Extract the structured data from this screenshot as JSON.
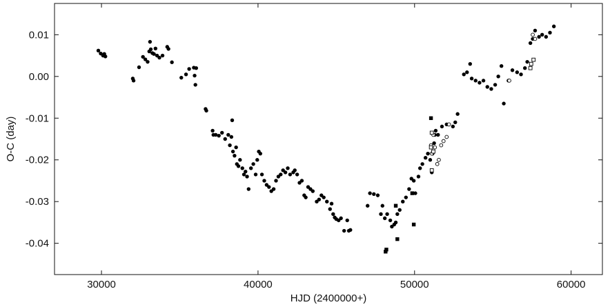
{
  "chart_data": {
    "type": "scatter",
    "xlabel": "HJD (2400000+)",
    "ylabel": "O-C (day)",
    "xlim": [
      27000,
      62000
    ],
    "ylim": [
      -0.0475,
      0.0175
    ],
    "xticks": [
      30000,
      40000,
      50000,
      60000
    ],
    "xtick_labels": [
      "30000",
      "40000",
      "50000",
      "60000"
    ],
    "yticks": [
      0.01,
      0.0,
      -0.01,
      -0.02,
      -0.03,
      -0.04
    ],
    "ytick_labels": [
      "0.01",
      "0.00",
      "-0.01",
      "-0.02",
      "-0.03",
      "-0.04"
    ],
    "grid": false,
    "legend": false,
    "series": [
      {
        "marker": "filled-circle",
        "points": [
          [
            29800,
            0.0062
          ],
          [
            29950,
            0.0055
          ],
          [
            30100,
            0.005
          ],
          [
            30250,
            0.0048
          ],
          [
            30180,
            0.0054
          ],
          [
            32000,
            -0.0005
          ],
          [
            32050,
            -0.001
          ],
          [
            32400,
            0.0022
          ],
          [
            32650,
            0.0047
          ],
          [
            32800,
            0.0041
          ],
          [
            32950,
            0.0035
          ],
          [
            33050,
            0.006
          ],
          [
            33100,
            0.0083
          ],
          [
            33150,
            0.0065
          ],
          [
            33250,
            0.0056
          ],
          [
            33350,
            0.0054
          ],
          [
            33450,
            0.0067
          ],
          [
            33550,
            0.005
          ],
          [
            33700,
            0.0045
          ],
          [
            33900,
            0.005
          ],
          [
            34200,
            0.0071
          ],
          [
            34280,
            0.0066
          ],
          [
            34500,
            0.0034
          ],
          [
            35100,
            -0.0003
          ],
          [
            35400,
            0.0005
          ],
          [
            35600,
            0.0018
          ],
          [
            35900,
            0.0021
          ],
          [
            35950,
            0.0002
          ],
          [
            36000,
            -0.002
          ],
          [
            36050,
            0.002
          ],
          [
            36650,
            -0.0078
          ],
          [
            36700,
            -0.0082
          ],
          [
            37100,
            -0.013
          ],
          [
            37150,
            -0.014
          ],
          [
            37300,
            -0.014
          ],
          [
            37500,
            -0.0142
          ],
          [
            37700,
            -0.0135
          ],
          [
            37900,
            -0.015
          ],
          [
            38100,
            -0.014
          ],
          [
            38200,
            -0.0165
          ],
          [
            38300,
            -0.0145
          ],
          [
            38350,
            -0.0105
          ],
          [
            38400,
            -0.018
          ],
          [
            38500,
            -0.019
          ],
          [
            38600,
            -0.017
          ],
          [
            38650,
            -0.021
          ],
          [
            38750,
            -0.0215
          ],
          [
            38850,
            -0.02
          ],
          [
            39000,
            -0.022
          ],
          [
            39100,
            -0.0235
          ],
          [
            39200,
            -0.0228
          ],
          [
            39300,
            -0.024
          ],
          [
            39400,
            -0.027
          ],
          [
            39550,
            -0.022
          ],
          [
            39700,
            -0.021
          ],
          [
            39850,
            -0.0235
          ],
          [
            39950,
            -0.02
          ],
          [
            40050,
            -0.018
          ],
          [
            40150,
            -0.0185
          ],
          [
            40250,
            -0.0235
          ],
          [
            40400,
            -0.025
          ],
          [
            40550,
            -0.026
          ],
          [
            40700,
            -0.0265
          ],
          [
            40850,
            -0.0275
          ],
          [
            41000,
            -0.027
          ],
          [
            41150,
            -0.025
          ],
          [
            41300,
            -0.024
          ],
          [
            41450,
            -0.0235
          ],
          [
            41600,
            -0.0225
          ],
          [
            41750,
            -0.023
          ],
          [
            41900,
            -0.022
          ],
          [
            42050,
            -0.0235
          ],
          [
            42250,
            -0.023
          ],
          [
            42350,
            -0.0225
          ],
          [
            42500,
            -0.0235
          ],
          [
            42650,
            -0.0255
          ],
          [
            42800,
            -0.025
          ],
          [
            42950,
            -0.0285
          ],
          [
            43050,
            -0.029
          ],
          [
            43200,
            -0.0265
          ],
          [
            43350,
            -0.027
          ],
          [
            43500,
            -0.0275
          ],
          [
            43750,
            -0.03
          ],
          [
            43900,
            -0.0295
          ],
          [
            44050,
            -0.0285
          ],
          [
            44200,
            -0.029
          ],
          [
            44400,
            -0.03
          ],
          [
            44600,
            -0.0318
          ],
          [
            44700,
            -0.0305
          ],
          [
            44800,
            -0.033
          ],
          [
            44900,
            -0.0338
          ],
          [
            45000,
            -0.0342
          ],
          [
            45150,
            -0.0345
          ],
          [
            45300,
            -0.034
          ],
          [
            45500,
            -0.037
          ],
          [
            45700,
            -0.0345
          ],
          [
            45800,
            -0.037
          ],
          [
            45900,
            -0.0368
          ],
          [
            47000,
            -0.031
          ],
          [
            47150,
            -0.028
          ],
          [
            47400,
            -0.0282
          ],
          [
            47650,
            -0.0285
          ],
          [
            47850,
            -0.033
          ],
          [
            47950,
            -0.031
          ],
          [
            48100,
            -0.034
          ],
          [
            48250,
            -0.033
          ],
          [
            48450,
            -0.0345
          ],
          [
            48550,
            -0.036
          ],
          [
            48700,
            -0.0355
          ],
          [
            48800,
            -0.035
          ],
          [
            48900,
            -0.033
          ],
          [
            49050,
            -0.032
          ],
          [
            49250,
            -0.03
          ],
          [
            49450,
            -0.029
          ],
          [
            49650,
            -0.027
          ],
          [
            49800,
            -0.0245
          ],
          [
            49950,
            -0.025
          ],
          [
            50050,
            -0.028
          ],
          [
            50250,
            -0.024
          ],
          [
            50350,
            -0.022
          ],
          [
            50500,
            -0.021
          ],
          [
            50700,
            -0.0195
          ],
          [
            50850,
            -0.0185
          ],
          [
            51000,
            -0.02
          ],
          [
            51100,
            -0.023
          ],
          [
            51150,
            -0.0185
          ],
          [
            51250,
            -0.016
          ],
          [
            51300,
            -0.014
          ],
          [
            51350,
            -0.013
          ],
          [
            51500,
            -0.014
          ],
          [
            51750,
            -0.012
          ],
          [
            52050,
            -0.0115
          ],
          [
            52450,
            -0.012
          ],
          [
            52600,
            -0.011
          ],
          [
            52750,
            -0.009
          ],
          [
            53150,
            0.0005
          ],
          [
            53350,
            0.001
          ],
          [
            53550,
            0.003
          ],
          [
            53650,
            -0.0005
          ],
          [
            53900,
            -0.001
          ],
          [
            54150,
            -0.0015
          ],
          [
            54400,
            -0.001
          ],
          [
            54650,
            -0.0025
          ],
          [
            54900,
            -0.003
          ],
          [
            55150,
            -0.002
          ],
          [
            55350,
            0.0
          ],
          [
            55550,
            0.0025
          ],
          [
            55700,
            -0.0065
          ],
          [
            56000,
            -0.001
          ],
          [
            56250,
            0.0015
          ],
          [
            56550,
            0.001
          ],
          [
            56800,
            0.0005
          ],
          [
            57050,
            0.002
          ],
          [
            57200,
            0.0035
          ],
          [
            57400,
            0.008
          ],
          [
            57550,
            0.009
          ],
          [
            57700,
            0.011
          ],
          [
            57950,
            0.0095
          ],
          [
            58150,
            0.01
          ],
          [
            58400,
            0.0095
          ],
          [
            58650,
            0.0105
          ],
          [
            58900,
            0.012
          ]
        ]
      },
      {
        "marker": "filled-square",
        "points": [
          [
            48150,
            -0.042
          ],
          [
            48200,
            -0.0415
          ],
          [
            48900,
            -0.039
          ],
          [
            48800,
            -0.031
          ],
          [
            49850,
            -0.028
          ],
          [
            49950,
            -0.0355
          ],
          [
            51050,
            -0.01
          ]
        ]
      },
      {
        "marker": "open-circle",
        "points": [
          [
            51050,
            -0.0165
          ],
          [
            51100,
            -0.0185
          ],
          [
            51200,
            -0.014
          ],
          [
            51300,
            -0.017
          ],
          [
            51450,
            -0.021
          ],
          [
            51550,
            -0.02
          ],
          [
            51700,
            -0.0165
          ],
          [
            51850,
            -0.0155
          ],
          [
            52050,
            -0.0145
          ],
          [
            52200,
            -0.0115
          ],
          [
            56050,
            -0.001
          ],
          [
            57700,
            0.009
          ],
          [
            57550,
            0.01
          ]
        ]
      },
      {
        "marker": "open-square",
        "points": [
          [
            51050,
            -0.017
          ],
          [
            51100,
            -0.0225
          ],
          [
            51200,
            -0.018
          ],
          [
            51100,
            -0.0135
          ],
          [
            57400,
            0.002
          ],
          [
            57450,
            0.003
          ],
          [
            57600,
            0.004
          ]
        ]
      }
    ]
  }
}
